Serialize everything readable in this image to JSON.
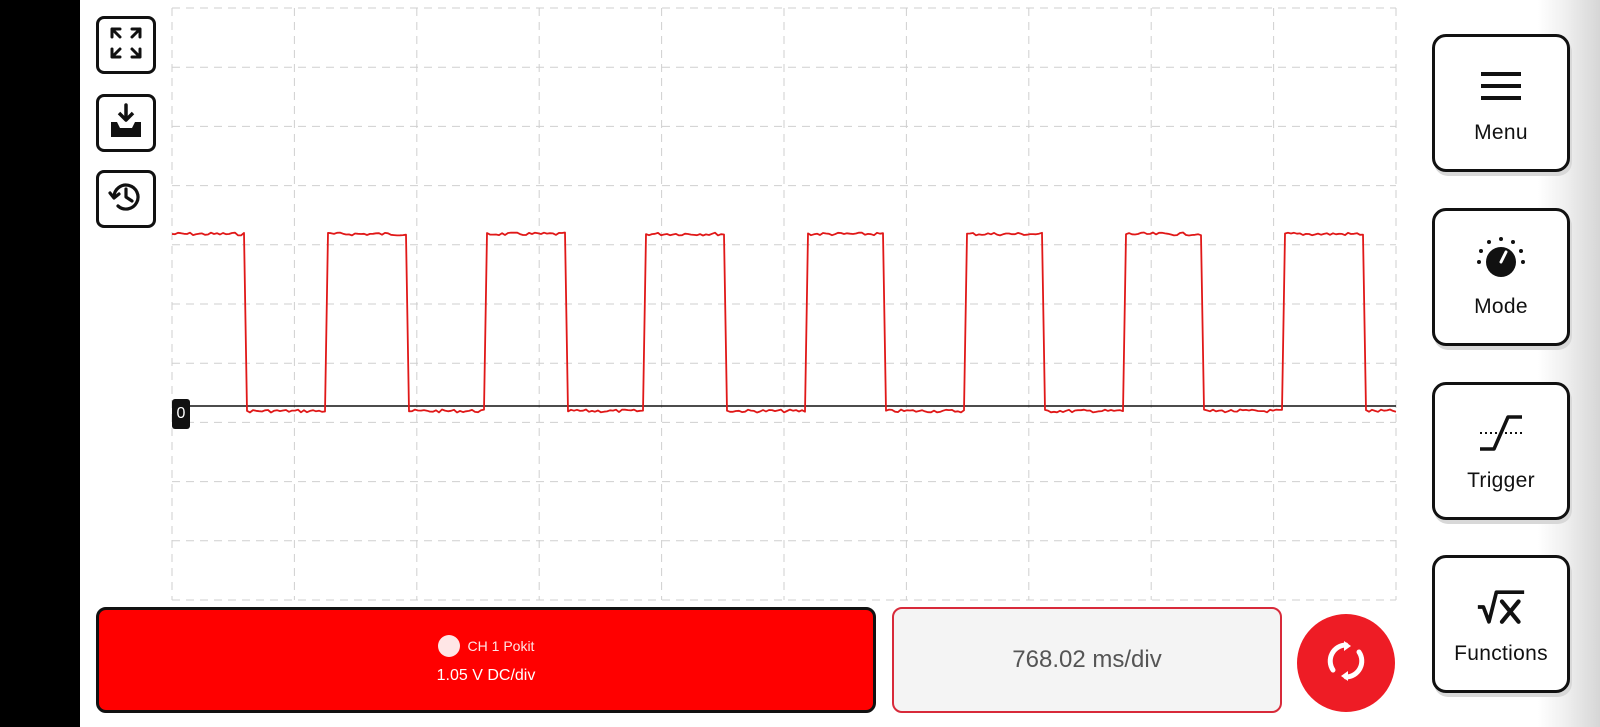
{
  "toolbar_left": {
    "fullscreen_icon": "expand-icon",
    "save_icon": "download-tray-icon",
    "history_icon": "history-icon"
  },
  "scope": {
    "zero_label": "0",
    "trace_color": "#e01818",
    "grid_color": "#cfcfcf"
  },
  "side_menu": {
    "menu_label": "Menu",
    "mode_label": "Mode",
    "trigger_label": "Trigger",
    "functions_label": "Functions"
  },
  "channel": {
    "name": "CH 1 Pokit",
    "scale": "1.05 V DC/div",
    "color": "#ff0000"
  },
  "timebase": {
    "value": "768.02 ms/div"
  },
  "run_button": {
    "icon": "refresh-run-icon",
    "color": "#ee1c25"
  }
}
